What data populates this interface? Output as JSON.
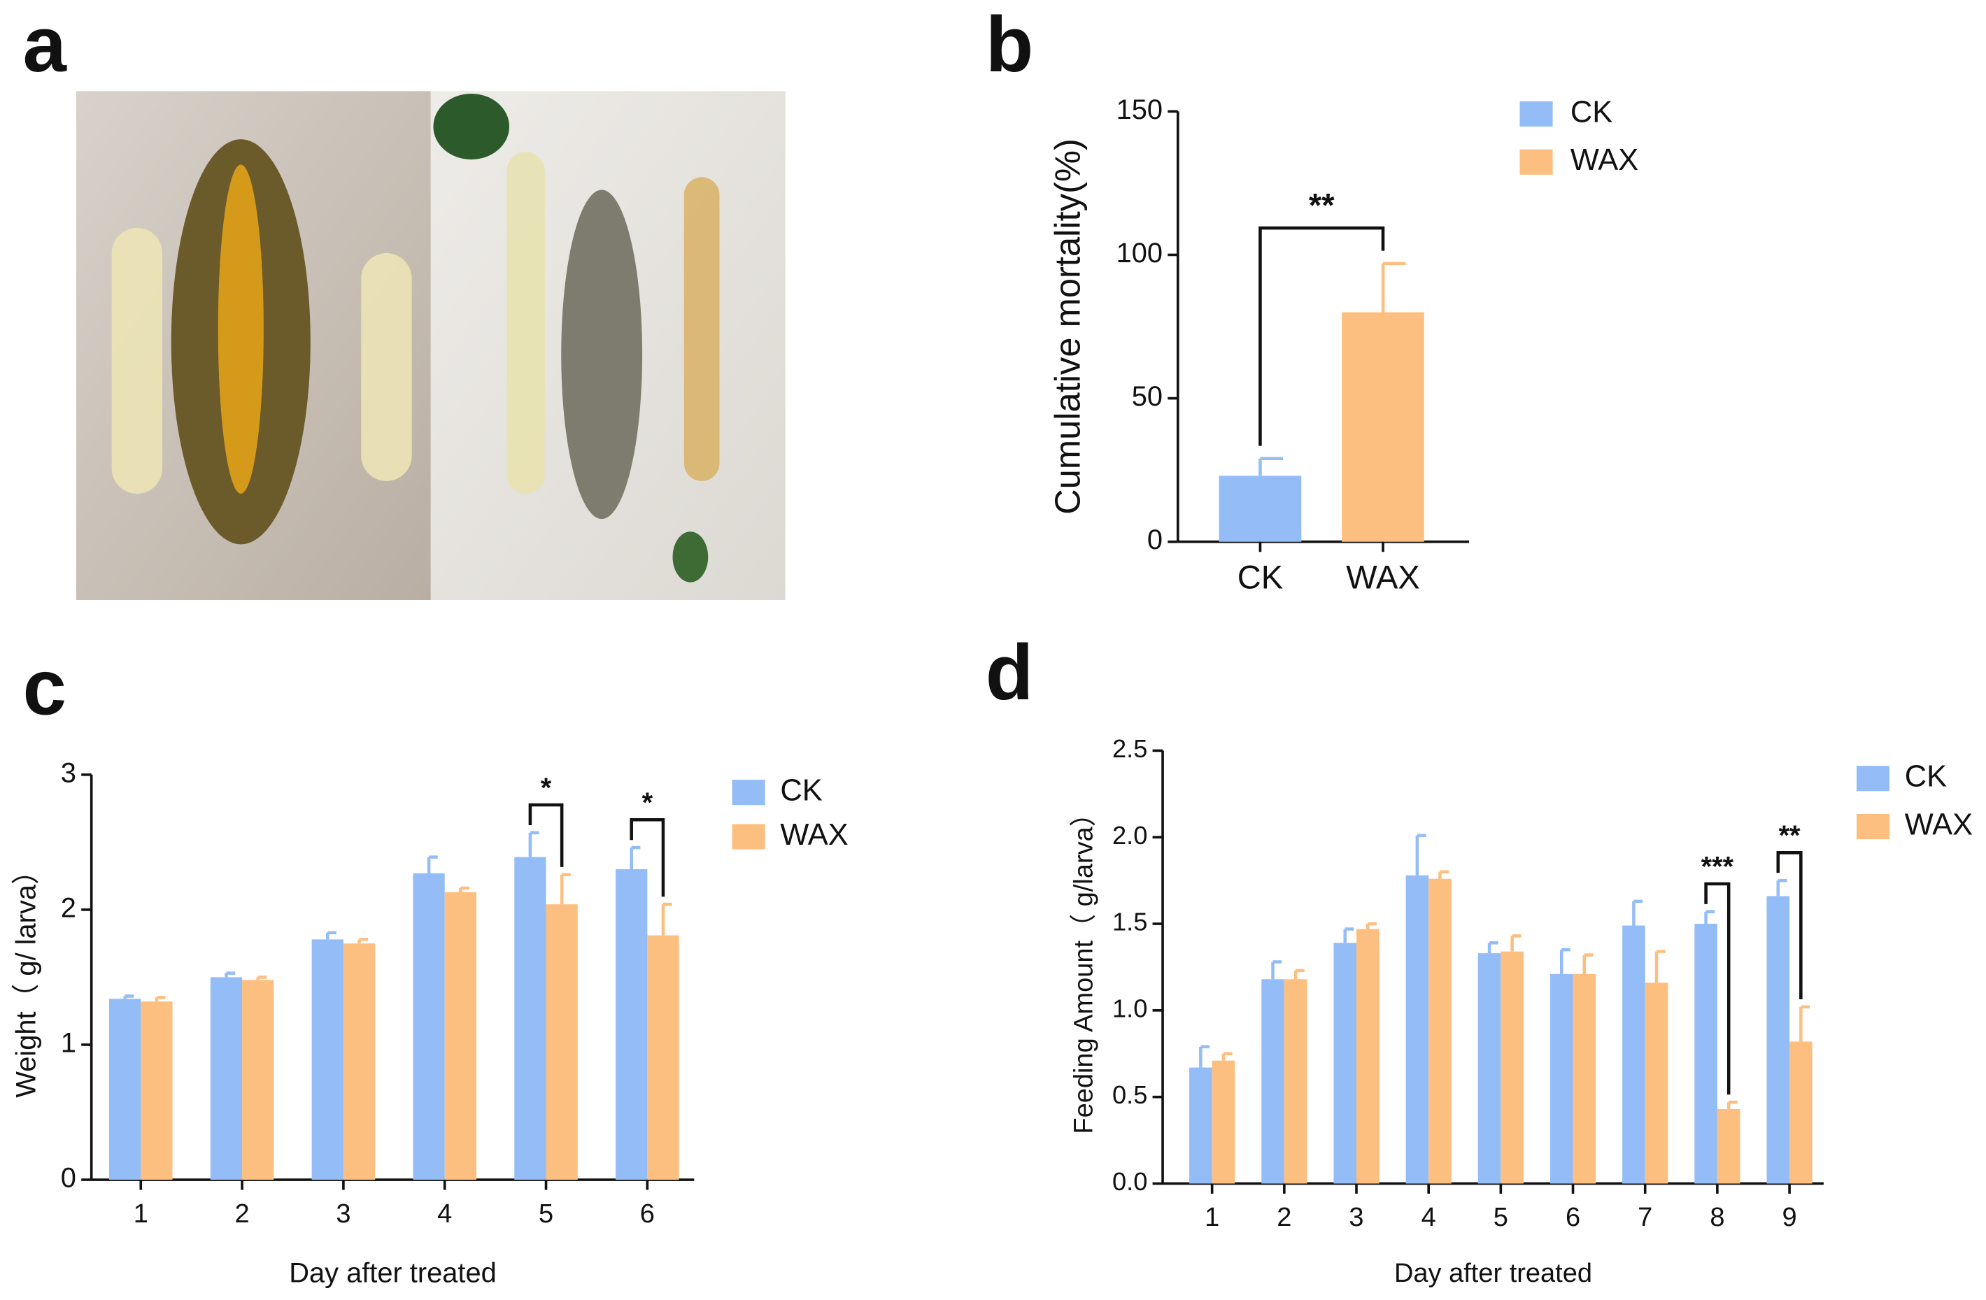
{
  "panel_labels": [
    "a",
    "b",
    "c",
    "d"
  ],
  "chart_data": [
    {
      "type": "bar",
      "ylabel": "Cumulative mortality(%)",
      "categories": [
        "CK",
        "WAX"
      ],
      "values": [
        23,
        80
      ],
      "errors": [
        6,
        17
      ],
      "colors": [
        "#94bdf7",
        "#fdbf80"
      ],
      "legend": [
        "CK",
        "WAX"
      ],
      "annotation": "**",
      "ylim": [
        0,
        150
      ],
      "yticks": [
        0,
        50,
        100,
        150
      ]
    },
    {
      "type": "grouped_bar",
      "xlabel": "Day after treated",
      "ylabel": "Weight（ g/ larva）",
      "categories": [
        "1",
        "2",
        "3",
        "4",
        "5",
        "6"
      ],
      "series": [
        {
          "name": "CK",
          "color": "#94bdf7",
          "values": [
            1.34,
            1.5,
            1.78,
            2.27,
            2.39,
            2.3
          ],
          "errors": [
            0.02,
            0.03,
            0.05,
            0.12,
            0.18,
            0.16
          ]
        },
        {
          "name": "WAX",
          "color": "#fdbf80",
          "values": [
            1.32,
            1.48,
            1.75,
            2.13,
            2.04,
            1.81
          ],
          "errors": [
            0.03,
            0.02,
            0.03,
            0.03,
            0.22,
            0.23
          ]
        }
      ],
      "significance": [
        null,
        null,
        null,
        null,
        "*",
        "*"
      ],
      "ylim": [
        0,
        3
      ],
      "yticks": [
        0,
        1,
        2,
        3
      ]
    },
    {
      "type": "grouped_bar",
      "xlabel": "Day after treated",
      "ylabel": "Feeding Amount（ g/larva）",
      "categories": [
        "1",
        "2",
        "3",
        "4",
        "5",
        "6",
        "7",
        "8",
        "9"
      ],
      "series": [
        {
          "name": "CK",
          "color": "#94bdf7",
          "values": [
            0.67,
            1.18,
            1.39,
            1.78,
            1.33,
            1.21,
            1.49,
            1.5,
            1.66
          ],
          "errors": [
            0.12,
            0.1,
            0.08,
            0.23,
            0.06,
            0.14,
            0.14,
            0.07,
            0.09
          ]
        },
        {
          "name": "WAX",
          "color": "#fdbf80",
          "values": [
            0.71,
            1.18,
            1.47,
            1.76,
            1.34,
            1.21,
            1.16,
            0.43,
            0.82
          ],
          "errors": [
            0.04,
            0.05,
            0.03,
            0.04,
            0.09,
            0.11,
            0.18,
            0.04,
            0.2
          ]
        }
      ],
      "significance": [
        null,
        null,
        null,
        null,
        null,
        null,
        null,
        "***",
        "**"
      ],
      "ylim": [
        0,
        2.5
      ],
      "yticks": [
        {
          "value": 0,
          "label": "0.0"
        },
        0.5,
        {
          "value": 1,
          "label": "1.0"
        },
        1.5,
        {
          "value": 2,
          "label": "2.0"
        },
        2.5
      ]
    }
  ]
}
